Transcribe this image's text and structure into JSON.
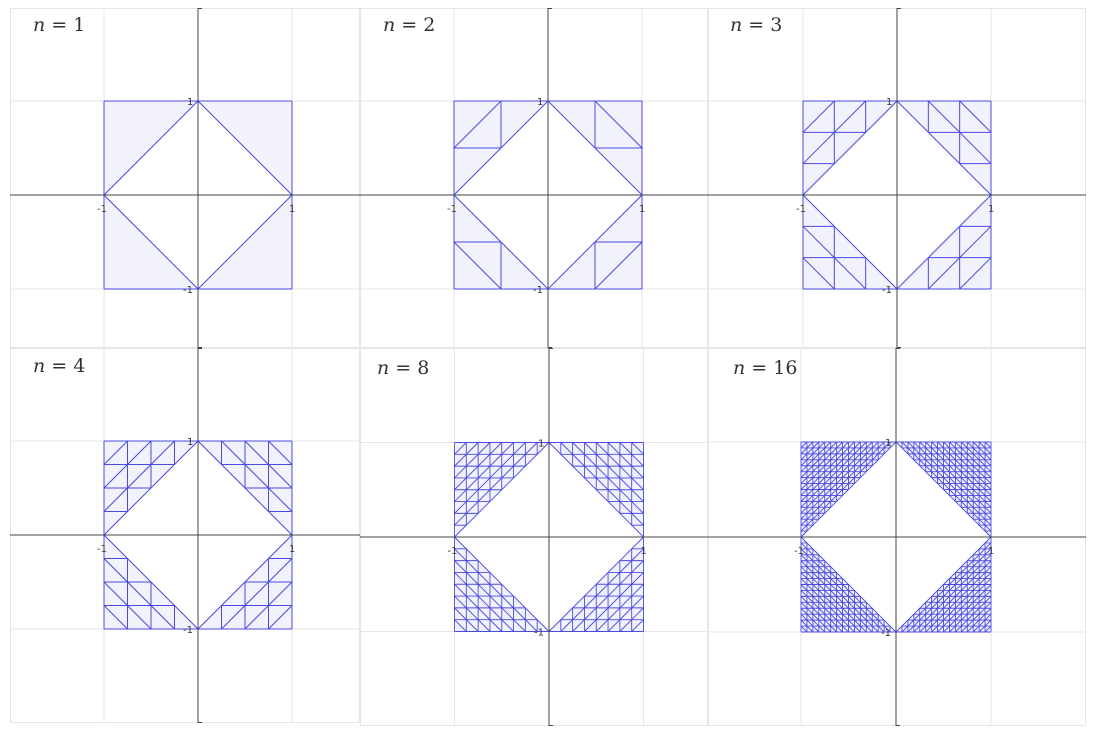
{
  "panels": [
    {
      "label_var": "n",
      "label_eq": " = ",
      "n": 1,
      "n_text": "1"
    },
    {
      "label_var": "n",
      "label_eq": " = ",
      "n": 2,
      "n_text": "2"
    },
    {
      "label_var": "n",
      "label_eq": " = ",
      "n": 3,
      "n_text": "3"
    },
    {
      "label_var": "n",
      "label_eq": " = ",
      "n": 4,
      "n_text": "4"
    },
    {
      "label_var": "n",
      "label_eq": " = ",
      "n": 8,
      "n_text": "8"
    },
    {
      "label_var": "n",
      "label_eq": " = ",
      "n": 16,
      "n_text": "16"
    }
  ],
  "axis_ticks": {
    "x_neg": "-1",
    "x_pos": "1",
    "y_pos": "1",
    "y_neg": "-1"
  },
  "colors": {
    "mesh_stroke": "#4a4ae0",
    "mesh_fill": "#f2f2fc",
    "grid": "#e6e6e6",
    "axis": "#444444",
    "label": "#333333"
  }
}
